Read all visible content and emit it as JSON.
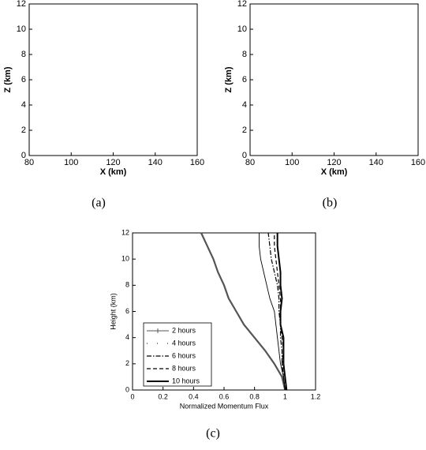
{
  "chart_data": [
    {
      "type": "contour",
      "caption": "(a)",
      "xlabel": "X (km)",
      "ylabel": "Z (km)",
      "xlim": [
        80,
        160
      ],
      "ylim": [
        0,
        12
      ],
      "xticks": [
        80,
        100,
        120,
        140,
        160
      ],
      "yticks": [
        0,
        2,
        4,
        6,
        8,
        10,
        12
      ]
    },
    {
      "type": "contour",
      "caption": "(b)",
      "xlabel": "X (km)",
      "ylabel": "Z (km)",
      "xlim": [
        80,
        160
      ],
      "ylim": [
        0,
        12
      ],
      "xticks": [
        80,
        100,
        120,
        140,
        160
      ],
      "yticks": [
        0,
        2,
        4,
        6,
        8,
        10,
        12
      ]
    },
    {
      "type": "line",
      "caption": "(c)",
      "xlabel": "Normalized Momentum Flux",
      "ylabel": "Height (km)",
      "xlim": [
        0,
        1.2
      ],
      "ylim": [
        0,
        12
      ],
      "xticks": [
        0,
        0.2,
        0.4,
        0.6,
        0.8,
        1,
        1.2
      ],
      "yticks": [
        0,
        2,
        4,
        6,
        8,
        10,
        12
      ],
      "y": [
        0,
        1,
        2,
        3,
        4,
        5,
        6,
        7,
        8,
        9,
        10,
        11,
        12
      ],
      "series": [
        {
          "name": "2 hours",
          "color": "#555555",
          "values": [
            1.0,
            0.98,
            0.93,
            0.87,
            0.8,
            0.73,
            0.68,
            0.63,
            0.6,
            0.56,
            0.53,
            0.49,
            0.45
          ]
        },
        {
          "name": "4 hours",
          "color": "#000000",
          "values": [
            1.0,
            0.99,
            0.97,
            0.96,
            0.95,
            0.94,
            0.93,
            0.9,
            0.88,
            0.86,
            0.84,
            0.83,
            0.83
          ]
        },
        {
          "name": "6 hours",
          "color": "#000000",
          "values": [
            1.0,
            0.99,
            0.98,
            0.98,
            0.97,
            0.97,
            0.96,
            0.96,
            0.95,
            0.93,
            0.91,
            0.9,
            0.89
          ]
        },
        {
          "name": "8 hours",
          "color": "#000000",
          "values": [
            1.0,
            0.99,
            0.98,
            0.99,
            0.98,
            0.97,
            0.97,
            0.97,
            0.96,
            0.95,
            0.94,
            0.93,
            0.93
          ]
        },
        {
          "name": "10 hours",
          "color": "#000000",
          "values": [
            1.01,
            1.0,
            0.99,
            0.99,
            0.99,
            0.97,
            0.97,
            0.98,
            0.97,
            0.97,
            0.96,
            0.95,
            0.95
          ]
        }
      ]
    }
  ]
}
